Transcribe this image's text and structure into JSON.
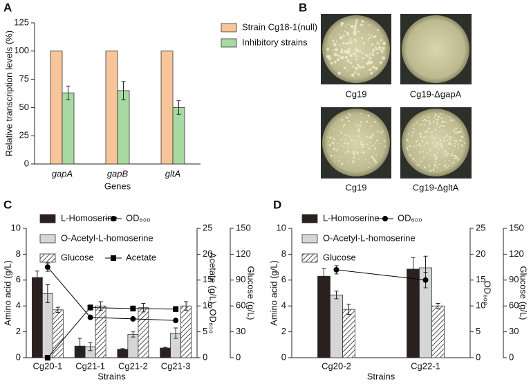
{
  "chart_data": [
    {
      "type": "bar",
      "panel_label": "A",
      "y_label": "Relative transcription levels (%)",
      "x_label": "Genes",
      "categories": [
        "gapA",
        "gapB",
        "gltA"
      ],
      "series": [
        {
          "name": "Strain Cg18-1(null)",
          "color": "#f8c49a",
          "values": [
            100,
            100,
            100
          ]
        },
        {
          "name": "Inhibitory strains",
          "color": "#a8d9a2",
          "values": [
            63,
            65,
            50
          ],
          "errors": [
            6,
            8,
            6
          ]
        }
      ],
      "ylim": [
        0,
        125
      ],
      "yticks": [
        0,
        25,
        50,
        75,
        100,
        125
      ]
    },
    {
      "type": "bar",
      "panel_label": "C",
      "y_label": "Amino acid (g/L)",
      "y2_label": "Acetate (g/L), OD₆₀₀",
      "y3_label": "Glucose (g/L)",
      "x_label": "Strains",
      "categories": [
        "Cg20-1",
        "Cg21-1",
        "Cg21-2",
        "Cg21-3"
      ],
      "series": [
        {
          "name": "L-Homoserine",
          "type": "bar",
          "color": "#2b201d",
          "values": [
            6.2,
            0.9,
            0.65,
            0.75
          ],
          "errors": [
            0.5,
            0.6,
            0.05,
            0.05
          ]
        },
        {
          "name": "O-Acetyl-L-homoserine",
          "type": "bar",
          "color": "#d6d6d6",
          "values": [
            4.95,
            0.85,
            1.8,
            1.9
          ],
          "errors": [
            0.7,
            0.3,
            0.2,
            0.4
          ]
        },
        {
          "name": "Glucose",
          "type": "bar",
          "color": "#ffffff",
          "hatch": true,
          "axis": "y3",
          "values": [
            55.5,
            60,
            58,
            60
          ],
          "errors": [
            3,
            5,
            5,
            5
          ]
        },
        {
          "name": "OD₆₀₀",
          "type": "line",
          "marker": "circle",
          "color": "#000000",
          "axis": "y2",
          "values": [
            17.5,
            7.8,
            7.5,
            7.2
          ],
          "errors": [
            0.8,
            0.3,
            0.3,
            0.3
          ]
        },
        {
          "name": "Acetate",
          "type": "line",
          "marker": "square",
          "color": "#000000",
          "axis": "y2",
          "values": [
            0,
            9.7,
            9.5,
            9.4
          ],
          "errors": [
            0.2,
            0.5,
            0.5,
            0.5
          ]
        }
      ],
      "ylim": [
        0,
        10
      ],
      "yticks": [
        0,
        2,
        4,
        6,
        8,
        10
      ],
      "y2lim": [
        0,
        25
      ],
      "y2ticks": [
        0,
        5,
        10,
        15,
        20,
        25
      ],
      "y3lim": [
        0,
        150
      ],
      "y3ticks": [
        0,
        30,
        60,
        90,
        120,
        150
      ]
    },
    {
      "type": "bar",
      "panel_label": "D",
      "y_label": "Amino acid (g/L)",
      "y2_label": "OD₆₀₀",
      "y3_label": "Glucose (g/L)",
      "x_label": "Strains",
      "categories": [
        "Cg20-2",
        "Cg22-1"
      ],
      "series": [
        {
          "name": "L-Homoserine",
          "type": "bar",
          "color": "#2b201d",
          "values": [
            6.3,
            6.85
          ],
          "errors": [
            0.6,
            0.9
          ]
        },
        {
          "name": "O-Acetyl-L-homoserine",
          "type": "bar",
          "color": "#d6d6d6",
          "values": [
            4.85,
            6.95
          ],
          "errors": [
            0.3,
            0.9
          ]
        },
        {
          "name": "Glucose",
          "type": "bar",
          "color": "#ffffff",
          "hatch": true,
          "axis": "y3",
          "values": [
            56,
            60
          ],
          "errors": [
            6,
            3
          ]
        },
        {
          "name": "OD₆₀₀",
          "type": "line",
          "marker": "circle",
          "color": "#000000",
          "axis": "y2",
          "values": [
            17,
            15
          ],
          "errors": [
            0.8,
            1.5
          ]
        }
      ],
      "ylim": [
        0,
        10
      ],
      "yticks": [
        0,
        2,
        4,
        6,
        8,
        10
      ],
      "y2lim": [
        0,
        25
      ],
      "y2ticks": [
        0,
        5,
        10,
        15,
        20,
        25
      ],
      "y3lim": [
        0,
        150
      ],
      "y3ticks": [
        0,
        30,
        60,
        90,
        120,
        150
      ]
    }
  ],
  "photo_panel": {
    "panel_label": "B",
    "captions": [
      "Cg19",
      "Cg19-ΔgapA",
      "Cg19",
      "Cg19-ΔgltA"
    ]
  }
}
